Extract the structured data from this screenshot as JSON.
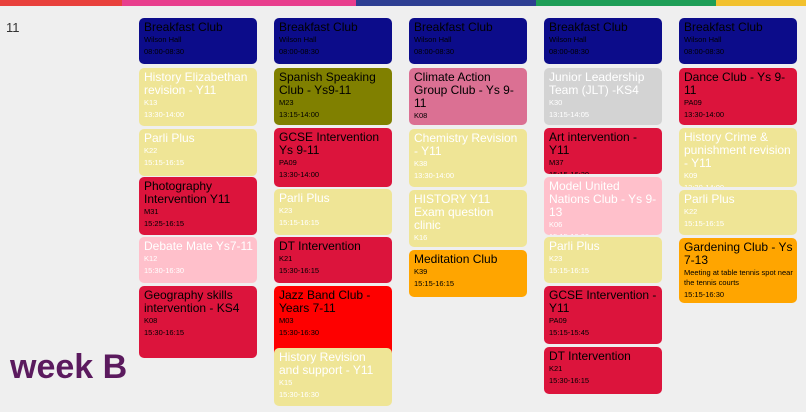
{
  "calendar": {
    "day_number": "11",
    "week_label": "week B",
    "top_bar_colors": [
      "#e8413c",
      "#e83f8d",
      "#2e3f92",
      "#1f9e57",
      "#f2c12e"
    ],
    "columns": [
      {
        "events": [
          {
            "title": "Breakfast Club",
            "room": "Wilson Hall",
            "time": "08:00-08:30",
            "color": "navy"
          },
          {
            "title": "History Elizabethan revision - Y11",
            "room": "K13",
            "time": "13:30-14:00",
            "color": "yellow"
          },
          {
            "title": "Parli Plus",
            "room": "K22",
            "time": "15:15-16:15",
            "color": "yellow"
          },
          {
            "title": "Photography Intervention Y11",
            "room": "M31",
            "time": "15:25-16:15",
            "color": "crimson"
          },
          {
            "title": "Debate Mate Ys7-11",
            "room": "K12",
            "time": "15:30-16:30",
            "color": "pink"
          },
          {
            "title": "Geography skills intervention - KS4",
            "room": "K08",
            "time": "15:30-16:15",
            "color": "crimson"
          }
        ]
      },
      {
        "events": [
          {
            "title": "Breakfast Club",
            "room": "Wilson Hall",
            "time": "08:00-08:30",
            "color": "navy"
          },
          {
            "title": "Spanish Speaking Club - Ys9-11",
            "room": "M23",
            "time": "13:15-14:00",
            "color": "olive"
          },
          {
            "title": "GCSE Intervention Ys 9-11",
            "room": "PA09",
            "time": "13:30-14:00",
            "color": "crimson"
          },
          {
            "title": "Parli Plus",
            "room": "K23",
            "time": "15:15-16:15",
            "color": "yellow"
          },
          {
            "title": "DT Intervention",
            "room": "K21",
            "time": "15:30-16:15",
            "color": "crimson"
          },
          {
            "title": "Jazz Band Club - Years 7-11",
            "room": "M03",
            "time": "15:30-16:30",
            "color": "red"
          },
          {
            "title": "History Revision and support - Y11",
            "room": "K15",
            "time": "15:30-16:30",
            "color": "yellow"
          }
        ]
      },
      {
        "events": [
          {
            "title": "Breakfast Club",
            "room": "Wilson Hall",
            "time": "08:00-08:30",
            "color": "navy"
          },
          {
            "title": "Climate Action Group Club - Ys 9-11",
            "room": "K08",
            "time": "13:15-14:00",
            "color": "rosy"
          },
          {
            "title": "Chemistry Revision - Y11",
            "room": "K38",
            "time": "13:30-14:00",
            "color": "yellow"
          },
          {
            "title": "HISTORY Y11 Exam question clinic",
            "room": "K16",
            "time": "13:30-14:00",
            "color": "yellow"
          },
          {
            "title": "Meditation Club",
            "room": "K39",
            "time": "15:15-16:15",
            "color": "orange"
          }
        ]
      },
      {
        "events": [
          {
            "title": "Breakfast Club",
            "room": "Wilson Hall",
            "time": "08:00-08:30",
            "color": "navy"
          },
          {
            "title": "Junior Leadership Team (JLT) -KS4",
            "room": "K30",
            "time": "13:15-14:05",
            "color": "grey"
          },
          {
            "title": "Art intervention - Y11",
            "room": "M37",
            "time": "15:15-16:30",
            "color": "crimson"
          },
          {
            "title": "Model United Nations Club - Ys 9-13",
            "room": "K06",
            "time": "15:15-16:00",
            "color": "pink"
          },
          {
            "title": "Parli Plus",
            "room": "K23",
            "time": "15:15-16:15",
            "color": "yellow"
          },
          {
            "title": "GCSE Intervention - Y11",
            "room": "PA09",
            "time": "15:15-15:45",
            "color": "crimson"
          },
          {
            "title": "DT Intervention",
            "room": "K21",
            "time": "15:30-16:15",
            "color": "crimson"
          }
        ]
      },
      {
        "events": [
          {
            "title": "Breakfast Club",
            "room": "Wilson Hall",
            "time": "08:00-08:30",
            "color": "navy"
          },
          {
            "title": "Dance Club - Ys 9-11",
            "room": "PA09",
            "time": "13:30-14:00",
            "color": "crimson"
          },
          {
            "title": "History Crime & punishment revision - Y11",
            "room": "K09",
            "time": "13:30-14:00",
            "color": "yellow"
          },
          {
            "title": "Parli Plus",
            "room": "K22",
            "time": "15:15-16:15",
            "color": "yellow"
          },
          {
            "title": "Gardening Club - Ys 7-13",
            "room": "Meeting at table tennis spot near the tennis courts",
            "time": "15:15-16:30",
            "color": "orange"
          }
        ]
      }
    ]
  }
}
